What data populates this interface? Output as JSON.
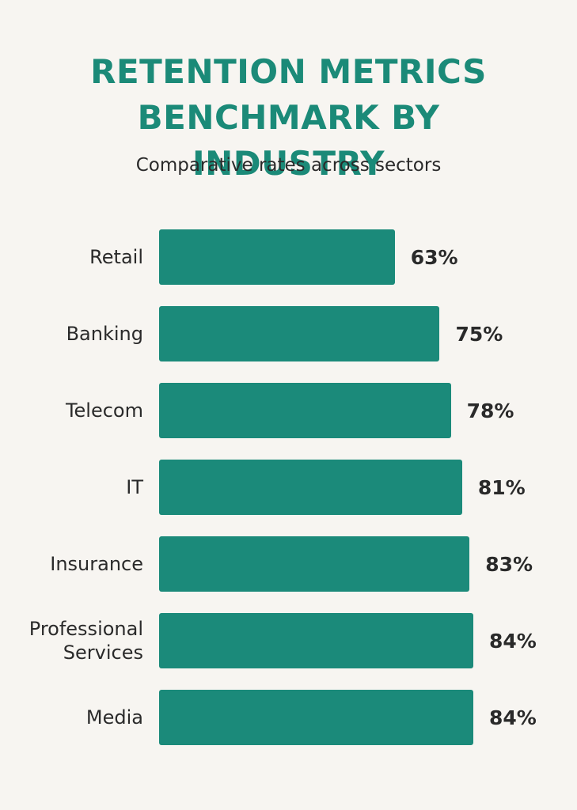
{
  "chart_data": {
    "type": "bar",
    "orientation": "horizontal",
    "title": "RETENTION METRICS BENCHMARK BY INDUSTRY",
    "subtitle": "Comparative rates across sectors",
    "categories": [
      "Retail",
      "Banking",
      "Telecom",
      "IT",
      "Insurance",
      "Professional Services",
      "Media"
    ],
    "values": [
      63,
      75,
      78,
      81,
      83,
      84,
      84
    ],
    "value_labels": [
      "63%",
      "75%",
      "78%",
      "81%",
      "83%",
      "84%",
      "84%"
    ],
    "color": "#1b8a7a"
  }
}
